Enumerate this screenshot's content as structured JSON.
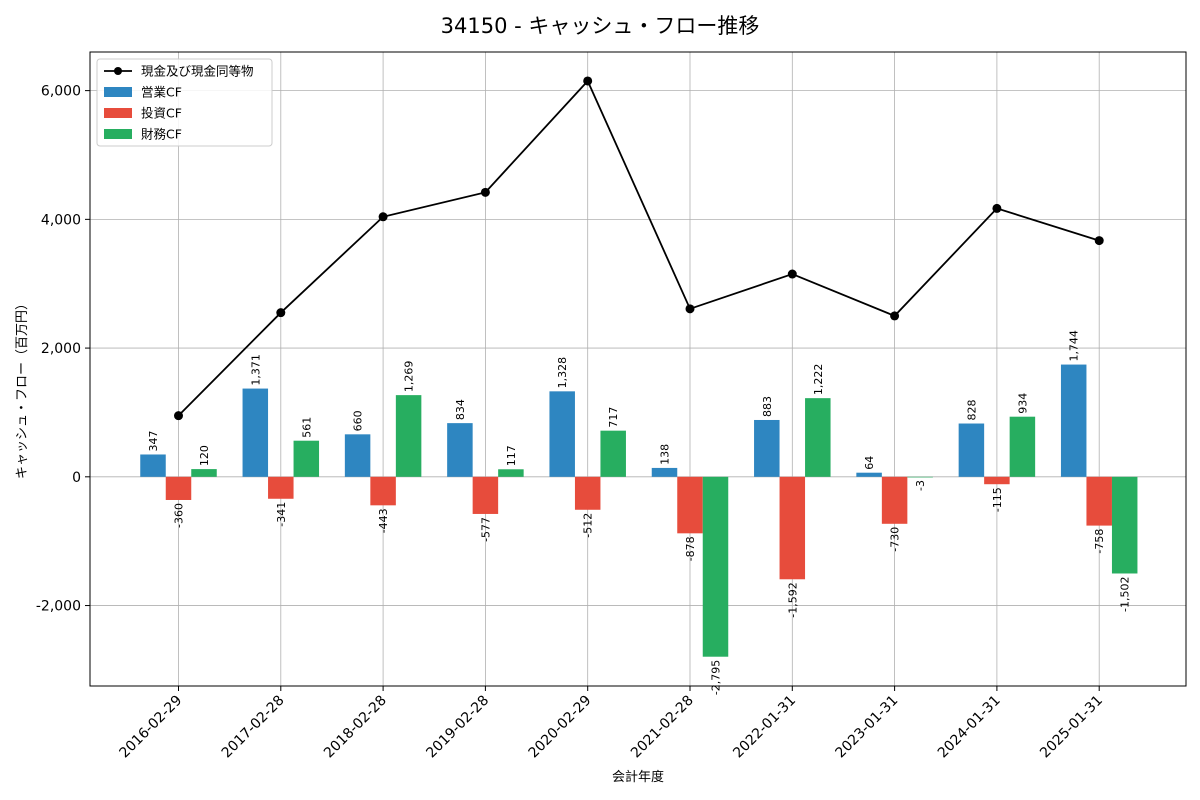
{
  "chart_data": {
    "type": "bar",
    "title": "34150 - キャッシュ・フロー推移",
    "xlabel": "会計年度",
    "ylabel": "キャッシュ・フロー（百万円）",
    "ylim": [
      -3250,
      6600
    ],
    "yticks": [
      -2000,
      0,
      2000,
      4000,
      6000
    ],
    "ytick_labels": [
      "-2,000",
      "0",
      "2,000",
      "4,000",
      "6,000"
    ],
    "grid": true,
    "legend_position": "top-left",
    "categories": [
      "2016-02-29",
      "2017-02-28",
      "2018-02-28",
      "2019-02-28",
      "2020-02-29",
      "2021-02-28",
      "2022-01-31",
      "2023-01-31",
      "2024-01-31",
      "2025-01-31"
    ],
    "series": [
      {
        "name": "営業CF",
        "kind": "bar",
        "color": "#2e86c1",
        "values": [
          347,
          1371,
          660,
          834,
          1328,
          138,
          883,
          64,
          828,
          1744
        ],
        "labels": [
          "347",
          "1,371",
          "660",
          "834",
          "1,328",
          "138",
          "883",
          "64",
          "828",
          "1,744"
        ]
      },
      {
        "name": "投資CF",
        "kind": "bar",
        "color": "#e74c3c",
        "values": [
          -360,
          -341,
          -443,
          -577,
          -512,
          -878,
          -1592,
          -730,
          -115,
          -758
        ],
        "labels": [
          "-360",
          "-341",
          "-443",
          "-577",
          "-512",
          "-878",
          "-1,592",
          "-730",
          "-115",
          "-758"
        ]
      },
      {
        "name": "財務CF",
        "kind": "bar",
        "color": "#27ae60",
        "values": [
          120,
          561,
          1269,
          117,
          717,
          -2795,
          1222,
          -3,
          934,
          -1502
        ],
        "labels": [
          "120",
          "561",
          "1,269",
          "117",
          "717",
          "-2,795",
          "1,222",
          "-3",
          "934",
          "-1,502"
        ]
      },
      {
        "name": "現金及び現金同等物",
        "kind": "line",
        "color": "#000000",
        "values": [
          950,
          2550,
          4040,
          4420,
          6150,
          2610,
          3150,
          2500,
          4170,
          3670
        ]
      }
    ]
  }
}
